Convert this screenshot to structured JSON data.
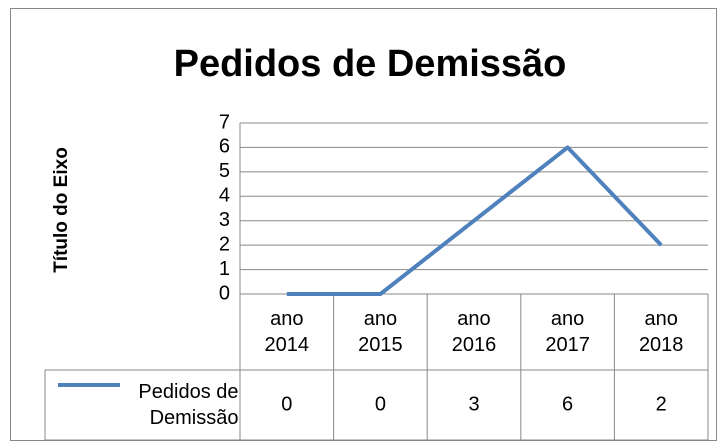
{
  "chart_data": {
    "type": "line",
    "title": "Pedidos de Demissão",
    "y_label": "Título do Eixo",
    "categories": [
      "ano 2014",
      "ano 2015",
      "ano 2016",
      "ano 2017",
      "ano 2018"
    ],
    "series": [
      {
        "name": "Pedidos de Demissão",
        "color": "#4f81bd",
        "values": [
          0,
          0,
          3,
          6,
          2
        ]
      }
    ],
    "ylim": [
      0,
      7
    ],
    "yticks": [
      0,
      1,
      2,
      3,
      4,
      5,
      6,
      7
    ],
    "grid": true,
    "data_table": true
  }
}
